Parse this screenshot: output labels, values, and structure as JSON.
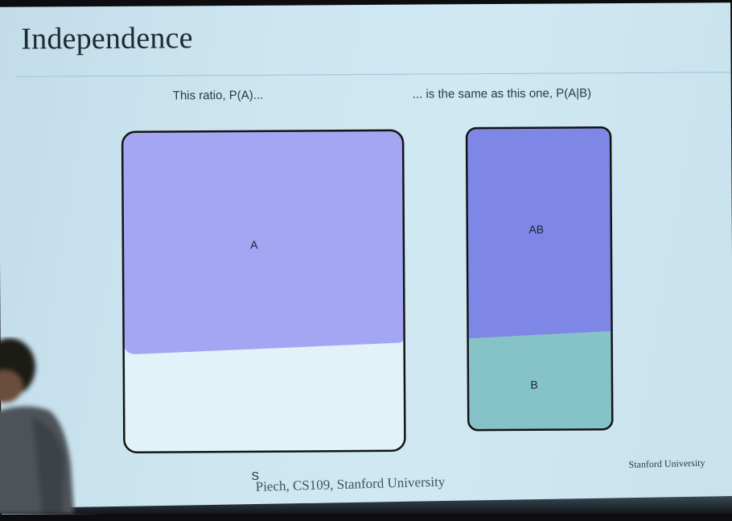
{
  "slide": {
    "title": "Independence",
    "caption_left": "This ratio, P(A)...",
    "caption_right": "... is the same as this one, P(A|B)",
    "footer": "Piech, CS109, Stanford University",
    "brand": "Stanford University"
  },
  "diagram": {
    "left_box": {
      "region_label": "A",
      "space_label": "S"
    },
    "right_box": {
      "top_label": "AB",
      "bottom_label": "B"
    },
    "colors": {
      "region_a": "#a3a6f3",
      "region_ab": "#7f87e6",
      "region_b": "#86c3c9",
      "space": "#e1f2f8",
      "outline": "#141414"
    }
  }
}
